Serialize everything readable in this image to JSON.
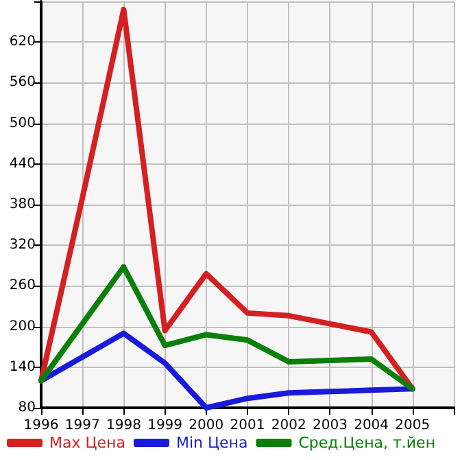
{
  "chart_data": {
    "type": "line",
    "x": [
      1996,
      1997,
      1998,
      1999,
      2000,
      2001,
      2002,
      2003,
      2004,
      2005
    ],
    "series": [
      {
        "name": "Max Цена",
        "color": "#d42020",
        "values": [
          120,
          390,
          668,
          194,
          278,
          220,
          216,
          204,
          192,
          108
        ]
      },
      {
        "name": "Min Цена",
        "color": "#1a1adc",
        "values": [
          120,
          155,
          190,
          146,
          80,
          94,
          102,
          104,
          106,
          108
        ]
      },
      {
        "name": "Сред.Цена, т.йен",
        "color": "#0a800a",
        "values": [
          120,
          204,
          288,
          172,
          188,
          180,
          148,
          150,
          152,
          108
        ]
      }
    ],
    "xlim": [
      1996,
      2006
    ],
    "xticks": [
      1996,
      1997,
      1998,
      1999,
      2000,
      2001,
      2002,
      2003,
      2004,
      2005,
      {
        "value": 2006,
        "label": null
      }
    ],
    "ylim": [
      80,
      680
    ],
    "yticks": [
      80,
      140,
      200,
      260,
      320,
      380,
      440,
      500,
      560,
      620,
      {
        "value": 680,
        "label": null
      }
    ],
    "grid": true,
    "legend": "bottom",
    "marker": "none",
    "line_style": "solid"
  }
}
